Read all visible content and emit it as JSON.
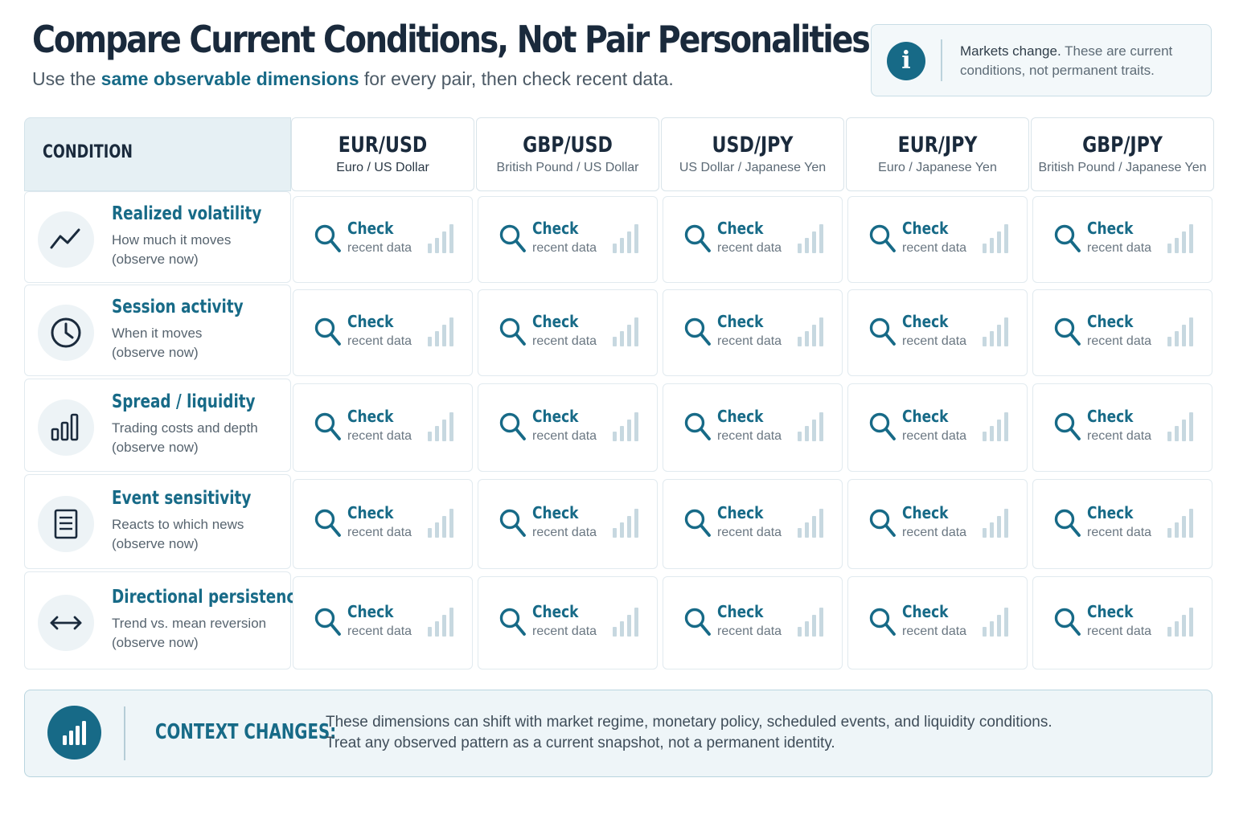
{
  "header": {
    "title": "Compare Current Conditions, Not Pair Personalities",
    "subtitle_pre": "Use the ",
    "subtitle_highlight": "same observable dimensions",
    "subtitle_post": " for every pair, then check recent data."
  },
  "info": {
    "icon": "info-icon",
    "text_strong": "Markets change.",
    "text_rest": " These are current conditions, not permanent traits."
  },
  "table": {
    "condition_header": "CONDITION",
    "pairs": [
      {
        "code": "EUR/USD",
        "name": "Euro / US Dollar"
      },
      {
        "code": "GBP/USD",
        "name": "British Pound / US Dollar"
      },
      {
        "code": "USD/JPY",
        "name": "US Dollar / Japanese Yen"
      },
      {
        "code": "EUR/JPY",
        "name": "Euro / Japanese Yen"
      },
      {
        "code": "GBP/JPY",
        "name": "British Pound / Japanese Yen"
      }
    ],
    "conditions": [
      {
        "title": "Realized volatility",
        "desc1": "How much it moves",
        "desc2": "(observe now)",
        "icon": "trend-line-icon"
      },
      {
        "title": "Session activity",
        "desc1": "When it moves",
        "desc2": "(observe now)",
        "icon": "clock-icon"
      },
      {
        "title": "Spread / liquidity",
        "desc1": "Trading costs and depth",
        "desc2": "(observe now)",
        "icon": "bar-chart-icon"
      },
      {
        "title": "Event sensitivity",
        "desc1": "Reacts to which news",
        "desc2": "(observe now)",
        "icon": "document-icon"
      },
      {
        "title": "Directional persistence",
        "desc1": "Trend vs. mean reversion",
        "desc2": "(observe now)",
        "icon": "arrows-horizontal-icon"
      }
    ],
    "cell": {
      "label": "Check",
      "sub": "recent data",
      "icon": "search-icon",
      "bars_icon": "signal-bars-icon"
    }
  },
  "context": {
    "label": "CONTEXT CHANGES:",
    "line1": "These dimensions can shift with market regime, monetary policy, scheduled events, and liquidity conditions.",
    "line2": "Treat any observed pattern as a current snapshot, not a permanent identity.",
    "icon": "bar-chart-icon"
  },
  "colors": {
    "accent": "#176a87",
    "title": "#1a2a3c"
  }
}
